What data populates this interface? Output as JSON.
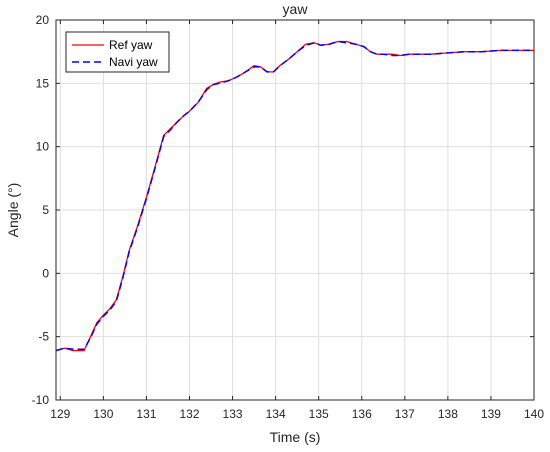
{
  "chart_data": {
    "type": "line",
    "title": "yaw",
    "xlabel": "Time (s)",
    "ylabel": "Angle (°)",
    "xlim": [
      128.9,
      140
    ],
    "ylim": [
      -10,
      20
    ],
    "xticks": [
      129,
      130,
      131,
      132,
      133,
      134,
      135,
      136,
      137,
      138,
      139,
      140
    ],
    "yticks": [
      -10,
      -5,
      0,
      5,
      10,
      15,
      20
    ],
    "grid": true,
    "legend_position": "top-left",
    "series": [
      {
        "name": "Ref yaw",
        "color": "#ff0000",
        "style": "solid",
        "x": [
          128.9,
          129.1,
          129.3,
          129.55,
          129.7,
          129.85,
          130.0,
          130.15,
          130.3,
          130.45,
          130.6,
          130.8,
          131.0,
          131.2,
          131.4,
          131.55,
          131.7,
          131.85,
          132.0,
          132.2,
          132.4,
          132.55,
          132.7,
          132.9,
          133.1,
          133.3,
          133.5,
          133.65,
          133.8,
          133.95,
          134.1,
          134.3,
          134.5,
          134.7,
          134.9,
          135.05,
          135.25,
          135.45,
          135.65,
          135.85,
          136.05,
          136.2,
          136.35,
          136.5,
          136.7,
          136.9,
          137.1,
          137.3,
          137.6,
          138.0,
          138.4,
          138.8,
          139.2,
          139.6,
          140.0
        ],
        "y": [
          -6.1,
          -5.9,
          -6.1,
          -6.1,
          -5.0,
          -3.9,
          -3.3,
          -2.8,
          -2.1,
          -0.3,
          1.8,
          3.8,
          6.0,
          8.4,
          10.9,
          11.4,
          11.9,
          12.4,
          12.8,
          13.5,
          14.6,
          14.9,
          15.1,
          15.2,
          15.5,
          15.9,
          16.4,
          16.3,
          15.9,
          15.9,
          16.4,
          16.9,
          17.5,
          18.1,
          18.2,
          18.0,
          18.1,
          18.3,
          18.3,
          18.1,
          17.9,
          17.5,
          17.3,
          17.3,
          17.3,
          17.2,
          17.3,
          17.3,
          17.3,
          17.4,
          17.5,
          17.5,
          17.6,
          17.6,
          17.6
        ]
      },
      {
        "name": "Navi yaw",
        "color": "#0000ff",
        "style": "dashed",
        "x": [
          128.9,
          129.1,
          129.3,
          129.55,
          129.7,
          129.85,
          130.0,
          130.15,
          130.3,
          130.45,
          130.6,
          130.8,
          131.0,
          131.2,
          131.4,
          131.55,
          131.7,
          131.85,
          132.0,
          132.2,
          132.4,
          132.55,
          132.7,
          132.9,
          133.1,
          133.3,
          133.5,
          133.65,
          133.8,
          133.95,
          134.1,
          134.3,
          134.5,
          134.7,
          134.9,
          135.05,
          135.25,
          135.45,
          135.65,
          135.85,
          136.05,
          136.2,
          136.35,
          136.5,
          136.7,
          136.9,
          137.1,
          137.3,
          137.6,
          138.0,
          138.4,
          138.8,
          139.2,
          139.6,
          140.0
        ],
        "y": [
          -6.1,
          -5.9,
          -6.0,
          -6.0,
          -5.1,
          -4.0,
          -3.4,
          -2.9,
          -2.2,
          -0.4,
          1.7,
          3.7,
          5.9,
          8.3,
          10.8,
          11.3,
          11.9,
          12.4,
          12.8,
          13.5,
          14.5,
          14.9,
          15.0,
          15.2,
          15.5,
          15.9,
          16.3,
          16.3,
          15.9,
          15.9,
          16.4,
          16.9,
          17.5,
          18.0,
          18.2,
          18.0,
          18.1,
          18.3,
          18.2,
          18.1,
          17.9,
          17.5,
          17.3,
          17.3,
          17.2,
          17.2,
          17.3,
          17.3,
          17.3,
          17.4,
          17.5,
          17.5,
          17.6,
          17.6,
          17.6
        ]
      }
    ]
  }
}
